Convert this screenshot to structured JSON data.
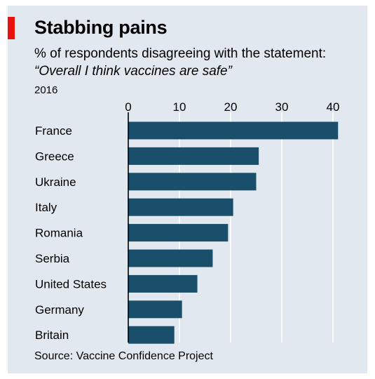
{
  "header": {
    "title": "Stabbing pains",
    "subtitle": "% of respondents disagreeing with the statement:",
    "quote": "“Overall I think vaccines are safe”",
    "year": "2016"
  },
  "footer": {
    "source": "Source: Vaccine Confidence Project"
  },
  "colors": {
    "background": "#e1e8ef",
    "bar": "#1a4f6b",
    "accent": "#e3120b",
    "gridline": "#ffffff"
  },
  "chart_data": {
    "type": "bar",
    "orientation": "horizontal",
    "title": "Stabbing pains",
    "subtitle": "% of respondents disagreeing with the statement: “Overall I think vaccines are safe”",
    "xlabel": "",
    "ylabel": "",
    "categories": [
      "France",
      "Greece",
      "Ukraine",
      "Italy",
      "Romania",
      "Serbia",
      "United States",
      "Germany",
      "Britain"
    ],
    "values": [
      41,
      25.5,
      25,
      20.5,
      19.5,
      16.5,
      13.5,
      10.5,
      9
    ],
    "xlim": [
      0,
      42
    ],
    "xticks": [
      0,
      10,
      20,
      30,
      40
    ],
    "tick_position": "top",
    "grid": true
  }
}
